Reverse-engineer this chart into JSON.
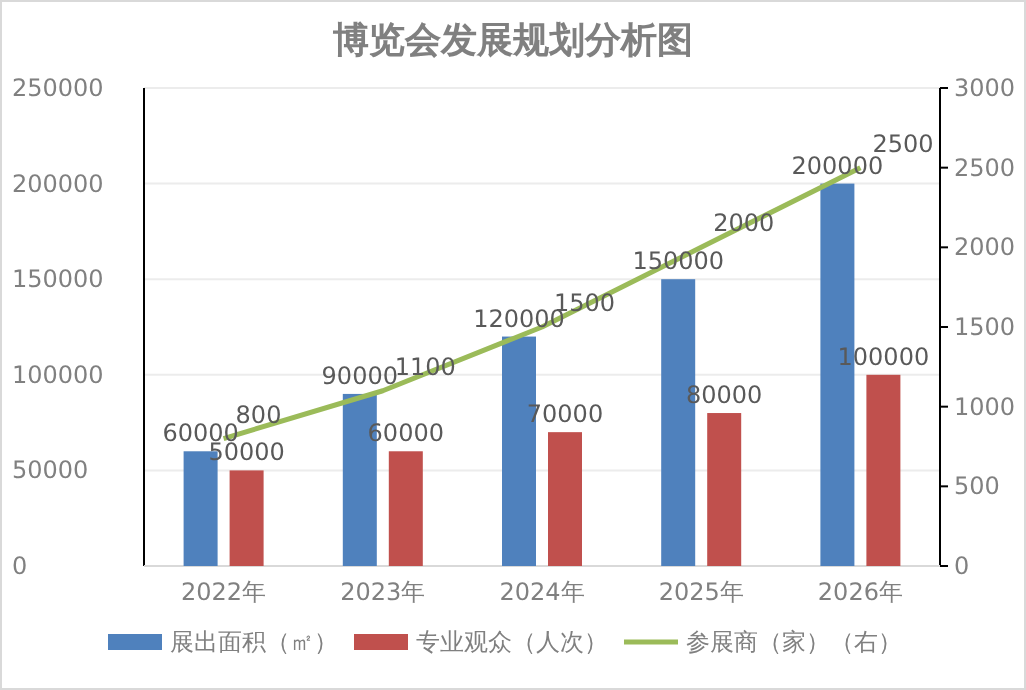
{
  "chart_data": {
    "type": "bar",
    "title": "博览会发展规划分析图",
    "categories": [
      "2022年",
      "2023年",
      "2024年",
      "2025年",
      "2026年"
    ],
    "series": [
      {
        "name": "展出面积（㎡）",
        "color": "#4f81bd",
        "values": [
          60000,
          90000,
          120000,
          150000,
          200000
        ]
      },
      {
        "name": "专业观众（人次）",
        "color": "#c0504d",
        "values": [
          50000,
          60000,
          70000,
          80000,
          100000
        ]
      },
      {
        "name": "参展商（家）（右）",
        "type": "line",
        "axis": "y2",
        "color": "#9bbb59",
        "values": [
          800,
          1100,
          1500,
          2000,
          2500
        ]
      }
    ],
    "ylim": [
      0,
      250000
    ],
    "yticks": [
      0,
      50000,
      100000,
      150000,
      200000,
      250000
    ],
    "y2lim": [
      0,
      3000
    ],
    "y2ticks": [
      0,
      500,
      1000,
      1500,
      2000,
      2500,
      3000
    ],
    "grid": "y",
    "legend": "bottom",
    "data_labels": true,
    "marker": "none",
    "line_style": "solid"
  }
}
